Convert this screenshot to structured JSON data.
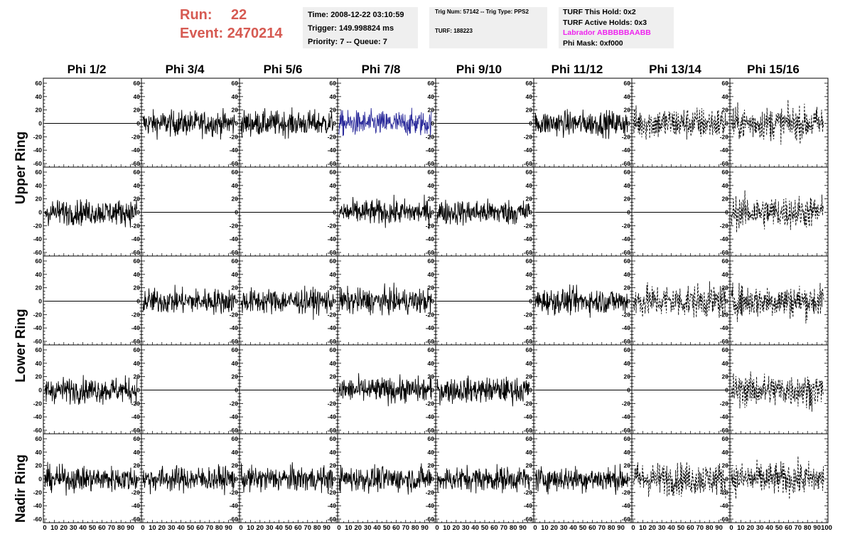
{
  "header": {
    "run_label": "Run:",
    "run_value": "22",
    "event_label": "Event:",
    "event_value": "2470214",
    "time": "Time: 2008-12-22 03:10:59",
    "trigger": "Trigger: 149.998824 ms",
    "priority": "Priority: 7 -- Queue: 7",
    "trig_num": "Trig Num: 57142 -- Trig Type: PPS2",
    "turf": "TURF: 188223",
    "turf_hold": "TURF This Hold: 0x2",
    "turf_active": "TURF Active Holds: 0x3",
    "labrador": "Labrador ABBBBBAABB",
    "phi_mask": "Phi Mask: 0xf000"
  },
  "columns": [
    "Phi 1/2",
    "Phi 3/4",
    "Phi 5/6",
    "Phi 7/8",
    "Phi 9/10",
    "Phi 11/12",
    "Phi 13/14",
    "Phi 15/16"
  ],
  "rings": [
    "Upper Ring",
    "Lower Ring",
    "Nadir Ring"
  ],
  "y_ticks": [
    "60",
    "40",
    "20",
    "0",
    "-20",
    "-40",
    "-60"
  ],
  "x_ticks": [
    "0",
    "10",
    "20",
    "30",
    "40",
    "50",
    "60",
    "70",
    "80",
    "90",
    "100"
  ],
  "colors": {
    "run": "#d65a52",
    "magenta": "#ee22ee",
    "highlight_trace": "#2a2a9a",
    "header_box": "#efefef"
  },
  "panels": [
    [
      "flat",
      "noise",
      "noise",
      "blue",
      "flat",
      "noise",
      "dashed",
      "dashed"
    ],
    [
      "noise",
      "flat",
      "flat",
      "noise",
      "noise",
      "flat",
      "flat",
      "dashed"
    ],
    [
      "flat",
      "noise",
      "noise",
      "noise",
      "flat",
      "noise",
      "dashed",
      "dashed"
    ],
    [
      "noise",
      "flat",
      "flat",
      "noise",
      "noise",
      "flat",
      "flat",
      "dashed"
    ],
    [
      "noise",
      "noise",
      "noise",
      "noise",
      "noise",
      "noise",
      "dashed",
      "dashed"
    ]
  ]
}
